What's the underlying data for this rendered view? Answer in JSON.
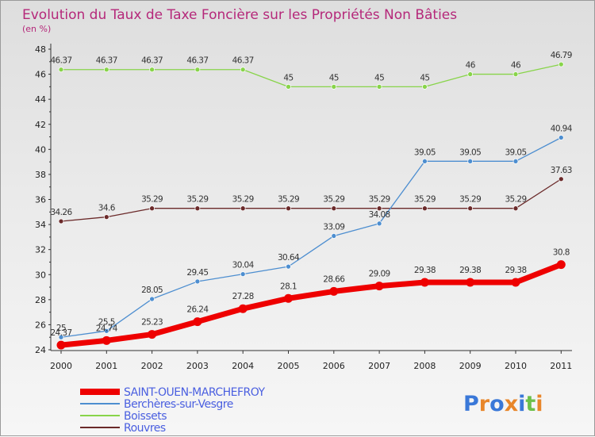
{
  "chart_data": {
    "type": "line",
    "title": "Evolution du Taux de Taxe Foncière sur les Propriétés Non Bâties",
    "subtitle": "(en %)",
    "xlabel": "",
    "ylabel": "",
    "x": [
      "2000",
      "2001",
      "2002",
      "2003",
      "2004",
      "2005",
      "2006",
      "2007",
      "2008",
      "2009",
      "2010",
      "2011"
    ],
    "ylim": [
      24,
      48
    ],
    "yticks": [
      "24",
      "26",
      "28",
      "30",
      "32",
      "34",
      "36",
      "38",
      "40",
      "42",
      "44",
      "46",
      "48"
    ],
    "grid": false,
    "legend_position": "bottom-left",
    "series": [
      {
        "name": "Boissets",
        "color": "#88d44a",
        "values": [
          46.37,
          46.37,
          46.37,
          46.37,
          46.37,
          45,
          45,
          45,
          45,
          46,
          46,
          46.79
        ],
        "labels": [
          "46.37",
          "46.37",
          "46.37",
          "46.37",
          "46.37",
          "45",
          "45",
          "45",
          "45",
          "46",
          "46",
          "46.79"
        ]
      },
      {
        "name": "Rouvres",
        "color": "#6b2a2a",
        "values": [
          34.26,
          34.6,
          35.29,
          35.29,
          35.29,
          35.29,
          35.29,
          35.29,
          35.29,
          35.29,
          35.29,
          37.63
        ],
        "labels": [
          "34.26",
          "34.6",
          "35.29",
          "35.29",
          "35.29",
          "35.29",
          "35.29",
          "35.29",
          "35.29",
          "35.29",
          "35.29",
          "37.63"
        ]
      },
      {
        "name": "Berchères-sur-Vesgre",
        "color": "#4d8ed0",
        "values": [
          25,
          25.5,
          28.05,
          29.45,
          30.04,
          30.64,
          33.09,
          34.08,
          39.05,
          39.05,
          39.05,
          40.94
        ],
        "labels": [
          "25",
          "25.5",
          "28.05",
          "29.45",
          "30.04",
          "30.64",
          "33.09",
          "34.08",
          "39.05",
          "39.05",
          "39.05",
          "40.94"
        ]
      },
      {
        "name": "SAINT-OUEN-MARCHEFROY",
        "color": "#ee0000",
        "values": [
          24.37,
          24.74,
          25.23,
          26.24,
          27.28,
          28.1,
          28.66,
          29.09,
          29.38,
          29.38,
          29.38,
          30.8
        ],
        "labels": [
          "24.37",
          "24.74",
          "25.23",
          "26.24",
          "27.28",
          "28.1",
          "28.66",
          "29.09",
          "29.38",
          "29.38",
          "29.38",
          "30.8"
        ]
      }
    ],
    "legend": [
      "SAINT-OUEN-MARCHEFROY",
      "Berchères-sur-Vesgre",
      "Boissets",
      "Rouvres"
    ]
  },
  "logo": {
    "text": "Proxiti",
    "colors": [
      "#3a78d8",
      "#e8862a",
      "#3a78d8",
      "#e8862a",
      "#3a78d8",
      "#6cc04a",
      "#e8862a"
    ]
  }
}
